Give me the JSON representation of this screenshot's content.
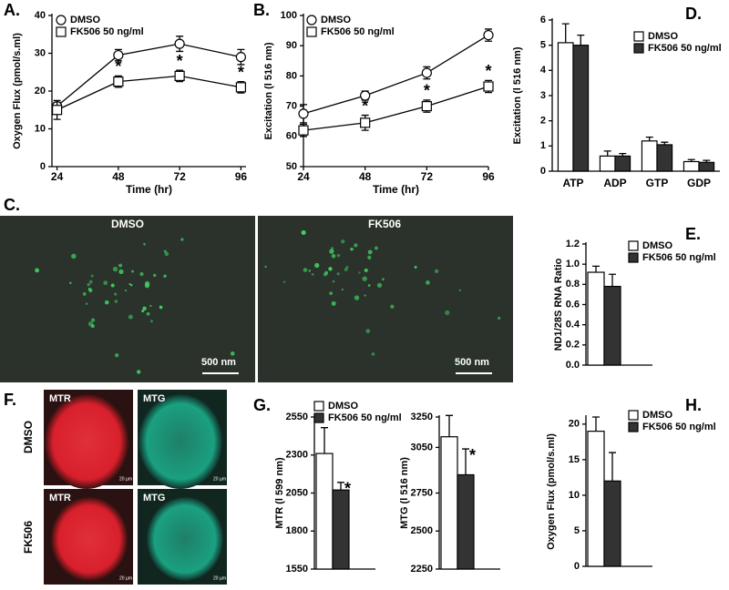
{
  "chart_data": [
    {
      "type": "line",
      "panel": "A.",
      "ylabel": "Oxygen Flux (pmol/s.ml)",
      "xlabel": "Time (hr)",
      "x": [
        24,
        48,
        72,
        96
      ],
      "xlim": [
        22,
        98
      ],
      "xticks": [
        24,
        48,
        72,
        96
      ],
      "ylim": [
        0,
        40
      ],
      "yticks": [
        0,
        10,
        20,
        30,
        40
      ],
      "series": [
        {
          "name": "DMSO",
          "marker": "circle",
          "color": "#ffffff",
          "values": [
            16,
            29.5,
            32.5,
            29
          ],
          "errors": [
            1,
            1.5,
            2,
            2
          ]
        },
        {
          "name": "FK506 50 ng/ml",
          "marker": "square",
          "color": "#ffffff",
          "values": [
            15,
            22.5,
            24,
            21
          ],
          "errors": [
            2.5,
            1.5,
            1.5,
            1.5
          ]
        }
      ],
      "annotations": [
        {
          "text": "*",
          "x": 48
        },
        {
          "text": "*",
          "x": 72
        },
        {
          "text": "*",
          "x": 96
        }
      ]
    },
    {
      "type": "line",
      "panel": "B.",
      "ylabel": "Excitation (l  516 nm)",
      "xlabel": "Time (hr)",
      "x": [
        24,
        48,
        72,
        96
      ],
      "xlim": [
        24,
        96
      ],
      "xticks": [
        24,
        48,
        72,
        96
      ],
      "ylim": [
        50,
        100
      ],
      "yticks": [
        50,
        60,
        70,
        80,
        90,
        100
      ],
      "series": [
        {
          "name": "DMSO",
          "marker": "circle",
          "color": "#ffffff",
          "values": [
            67.5,
            73.5,
            81,
            93.5
          ],
          "errors": [
            3,
            1.5,
            2,
            2
          ]
        },
        {
          "name": "FK506 50 ng/ml",
          "marker": "square",
          "color": "#ffffff",
          "values": [
            62,
            64.5,
            70,
            76.5
          ],
          "errors": [
            2,
            2.5,
            2,
            2
          ]
        }
      ],
      "annotations": [
        {
          "text": "*",
          "x": 48
        },
        {
          "text": "*",
          "x": 72
        },
        {
          "text": "*",
          "x": 96
        }
      ]
    },
    {
      "type": "bar",
      "panel": "D.",
      "ylabel": "Excitation (l  516 nm)",
      "categories": [
        "ATP",
        "ADP",
        "GTP",
        "GDP"
      ],
      "ylim": [
        0,
        6
      ],
      "yticks": [
        0,
        1,
        2,
        3,
        4,
        5,
        6
      ],
      "series": [
        {
          "name": "DMSO",
          "color": "#ffffff",
          "values": [
            5.1,
            0.6,
            1.2,
            0.38
          ],
          "errors": [
            0.75,
            0.2,
            0.15,
            0.08
          ]
        },
        {
          "name": "FK506 50 ng/ml",
          "color": "#333333",
          "values": [
            5.0,
            0.6,
            1.05,
            0.35
          ],
          "errors": [
            0.4,
            0.1,
            0.1,
            0.08
          ]
        }
      ]
    },
    {
      "type": "bar",
      "panel": "E.",
      "ylabel": "ND1/28S RNA Ratio",
      "ylim": [
        0,
        1.2
      ],
      "yticks": [
        {
          "value": 0,
          "label": "0.0"
        },
        0.2,
        0.4,
        0.6,
        0.8,
        {
          "value": 1,
          "label": "1.0"
        },
        1.2
      ],
      "series": [
        {
          "name": "DMSO",
          "color": "#ffffff",
          "values": [
            0.92
          ],
          "errors": [
            0.06
          ]
        },
        {
          "name": "FK506 50 ng/ml",
          "color": "#333333",
          "values": [
            0.78
          ],
          "errors": [
            0.12
          ]
        }
      ]
    },
    {
      "type": "bar",
      "panel": "G.",
      "ylabel": "MTR (l  599 nm)",
      "ylim": [
        1550,
        2550
      ],
      "yticks": [
        1550,
        1800,
        2050,
        2300,
        2550
      ],
      "series": [
        {
          "name": "DMSO",
          "color": "#ffffff",
          "values": [
            2310
          ],
          "errors": [
            170
          ]
        },
        {
          "name": "FK506 50 ng/ml",
          "color": "#333333",
          "values": [
            2070
          ],
          "errors": [
            50
          ]
        }
      ],
      "annotations": [
        {
          "text": "*",
          "series": 1
        }
      ]
    },
    {
      "type": "bar",
      "ylabel": "MTG (l  516 nm)",
      "ylim": [
        2250,
        3250
      ],
      "yticks": [
        2250,
        2500,
        2750,
        3050,
        3250
      ],
      "series": [
        {
          "color": "#ffffff",
          "values": [
            3120
          ],
          "errors": [
            140
          ]
        },
        {
          "color": "#333333",
          "values": [
            2870
          ],
          "errors": [
            170
          ]
        }
      ],
      "annotations": [
        {
          "text": "*",
          "series": 1
        }
      ]
    },
    {
      "type": "bar",
      "panel": "H.",
      "ylabel": "Oxygen Flux (pmol/s.ml)",
      "ylim": [
        0,
        21
      ],
      "yticks": [
        0,
        5,
        10,
        15,
        20
      ],
      "series": [
        {
          "name": "DMSO",
          "color": "#ffffff",
          "values": [
            19
          ],
          "errors": [
            2
          ]
        },
        {
          "name": "FK506 50 ng/ml",
          "color": "#333333",
          "values": [
            12
          ],
          "errors": [
            4
          ]
        }
      ]
    }
  ],
  "images": [
    {
      "panel": "C.",
      "columns": [
        "DMSO",
        "FK506"
      ],
      "scale_bar": "500 nm"
    },
    {
      "panel": "F.",
      "rows": [
        "DMSO",
        "FK506"
      ],
      "stains": [
        "MTR",
        "MTG"
      ],
      "scale_bar": "20 µm"
    }
  ]
}
